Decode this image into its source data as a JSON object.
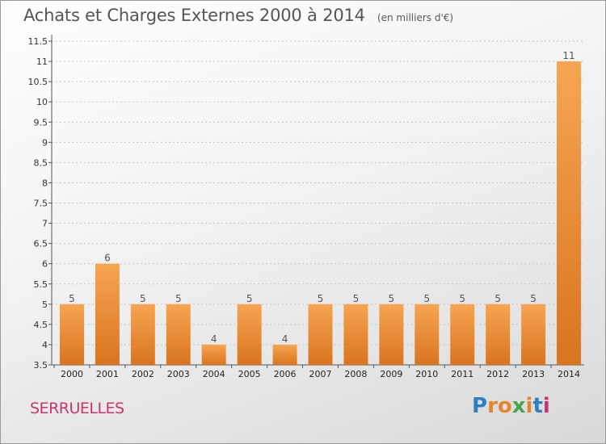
{
  "title": "Achats et Charges Externes 2000 à 2014",
  "subtitle": "(en milliers d'€)",
  "commune": "SERRUELLES",
  "logo": {
    "letters": [
      "P",
      "r",
      "o",
      "x",
      "i",
      "t",
      "i"
    ],
    "colors": [
      "#2e7fc1",
      "#e5862a",
      "#e5862a",
      "#4aa64a",
      "#e5862a",
      "#2e7fc1",
      "#c8366f"
    ]
  },
  "chart_data": {
    "type": "bar",
    "title": "Achats et Charges Externes 2000 à 2014",
    "subtitle": "(en milliers d'€)",
    "categories": [
      "2000",
      "2001",
      "2002",
      "2003",
      "2004",
      "2005",
      "2006",
      "2007",
      "2008",
      "2009",
      "2010",
      "2011",
      "2012",
      "2013",
      "2014"
    ],
    "values": [
      5,
      6,
      5,
      5,
      4,
      5,
      4,
      5,
      5,
      5,
      5,
      5,
      5,
      5,
      11
    ],
    "data_labels": [
      "5",
      "6",
      "5",
      "5",
      "4",
      "5",
      "4",
      "5",
      "5",
      "5",
      "5",
      "5",
      "5",
      "5",
      "11"
    ],
    "ylim": [
      3.5,
      11.5
    ],
    "yticks": [
      "3.5",
      "4",
      "4.5",
      "5",
      "5.5",
      "6",
      "6.5",
      "7",
      "7.5",
      "8",
      "8.5",
      "9",
      "9.5",
      "10",
      "10.5",
      "11",
      "11.5"
    ],
    "grid": true,
    "bar_color": "#f0903a",
    "xlabel": "",
    "ylabel": ""
  }
}
